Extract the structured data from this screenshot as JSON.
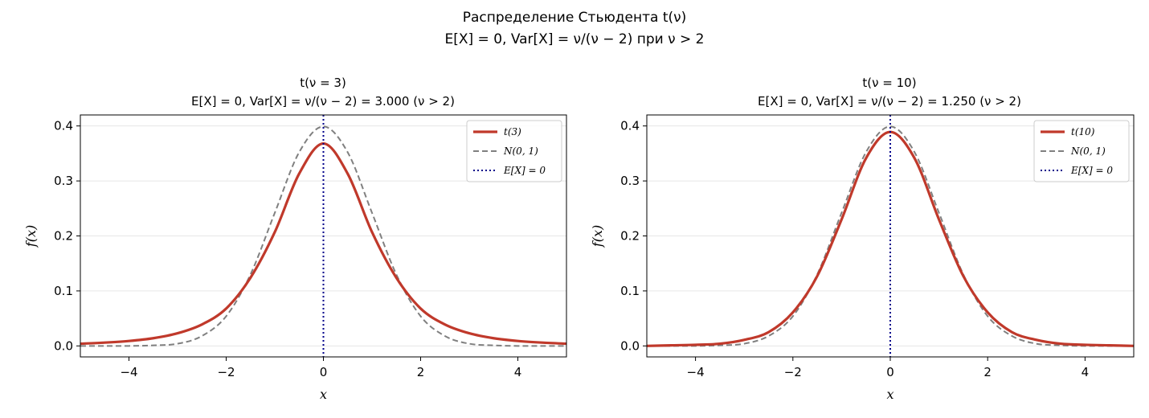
{
  "figure": {
    "title_line1": "Распределение Стьюдента t(ν)",
    "title_line2": "E[X] = 0,  Var[X] = ν/(ν − 2) при ν > 2"
  },
  "chart_data": [
    {
      "type": "line",
      "nu": 3,
      "title_line1": "t(ν = 3)",
      "title_line2": "E[X] = 0,  Var[X] = ν/(ν − 2) = 3.000  (ν > 2)",
      "xlabel": "x",
      "ylabel": "f(x)",
      "xlim": [
        -5,
        5
      ],
      "ylim": [
        -0.02,
        0.42
      ],
      "xticks": [
        -4,
        -2,
        0,
        2,
        4
      ],
      "yticks": [
        0.0,
        0.1,
        0.2,
        0.3,
        0.4
      ],
      "xtick_labels": [
        "−4",
        "−2",
        "0",
        "2",
        "4"
      ],
      "ytick_labels": [
        "0.0",
        "0.1",
        "0.2",
        "0.3",
        "0.4"
      ],
      "grid": "y",
      "legend_position": "top-right",
      "x": [
        -5,
        -4.5,
        -4,
        -3.5,
        -3,
        -2.5,
        -2,
        -1.5,
        -1,
        -0.5,
        0,
        0.5,
        1,
        1.5,
        2,
        2.5,
        3,
        3.5,
        4,
        4.5,
        5
      ],
      "series": [
        {
          "name": "t(3)",
          "style": "solid",
          "color": "#c0392b",
          "values": [
            0.004,
            0.006,
            0.009,
            0.014,
            0.023,
            0.039,
            0.068,
            0.124,
            0.207,
            0.313,
            0.368,
            0.313,
            0.207,
            0.124,
            0.068,
            0.039,
            0.023,
            0.014,
            0.009,
            0.006,
            0.004
          ]
        },
        {
          "name": "N(0, 1)",
          "style": "dashed",
          "color": "#808080",
          "values": [
            0.0,
            0.0,
            0.0,
            0.001,
            0.004,
            0.018,
            0.054,
            0.13,
            0.242,
            0.352,
            0.399,
            0.352,
            0.242,
            0.13,
            0.054,
            0.018,
            0.004,
            0.001,
            0.0,
            0.0,
            0.0
          ]
        }
      ],
      "vline": {
        "name": "E[X] = 0",
        "x": 0,
        "style": "dotted",
        "color": "#00008b"
      }
    },
    {
      "type": "line",
      "nu": 10,
      "title_line1": "t(ν = 10)",
      "title_line2": "E[X] = 0,  Var[X] = ν/(ν − 2) = 1.250  (ν > 2)",
      "xlabel": "x",
      "ylabel": "f(x)",
      "xlim": [
        -5,
        5
      ],
      "ylim": [
        -0.02,
        0.42
      ],
      "xticks": [
        -4,
        -2,
        0,
        2,
        4
      ],
      "yticks": [
        0.0,
        0.1,
        0.2,
        0.3,
        0.4
      ],
      "xtick_labels": [
        "−4",
        "−2",
        "0",
        "2",
        "4"
      ],
      "ytick_labels": [
        "0.0",
        "0.1",
        "0.2",
        "0.3",
        "0.4"
      ],
      "grid": "y",
      "legend_position": "top-right",
      "x": [
        -5,
        -4.5,
        -4,
        -3.5,
        -3,
        -2.5,
        -2,
        -1.5,
        -1,
        -0.5,
        0,
        0.5,
        1,
        1.5,
        2,
        2.5,
        3,
        3.5,
        4,
        4.5,
        5
      ],
      "series": [
        {
          "name": "t(10)",
          "style": "solid",
          "color": "#c0392b",
          "values": [
            0.0,
            0.001,
            0.002,
            0.004,
            0.011,
            0.025,
            0.061,
            0.127,
            0.23,
            0.341,
            0.389,
            0.341,
            0.23,
            0.127,
            0.061,
            0.025,
            0.011,
            0.004,
            0.002,
            0.001,
            0.0
          ]
        },
        {
          "name": "N(0, 1)",
          "style": "dashed",
          "color": "#808080",
          "values": [
            0.0,
            0.0,
            0.0,
            0.001,
            0.004,
            0.018,
            0.054,
            0.13,
            0.242,
            0.352,
            0.399,
            0.352,
            0.242,
            0.13,
            0.054,
            0.018,
            0.004,
            0.001,
            0.0,
            0.0,
            0.0
          ]
        }
      ],
      "vline": {
        "name": "E[X] = 0",
        "x": 0,
        "style": "dotted",
        "color": "#00008b"
      }
    }
  ]
}
